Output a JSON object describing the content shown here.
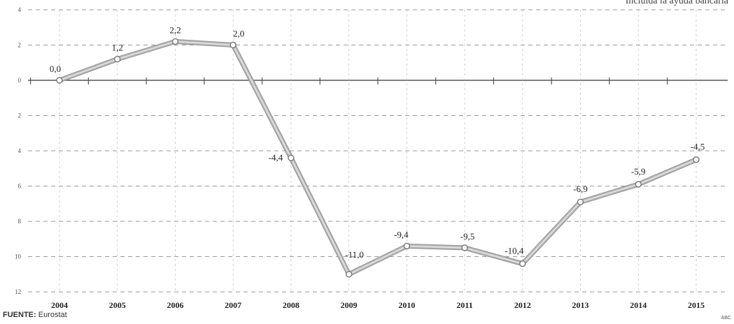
{
  "subtitle": "Incluida la ayuda bancaria",
  "source_label": "FUENTE:",
  "source_value": "Eurostat",
  "credit": "ABC",
  "colors": {
    "line": "#b9b9b9",
    "highlight": "#d6d6d6",
    "grid": "#9a9a9a",
    "text": "#222222"
  },
  "chart_data": {
    "type": "line",
    "title": "",
    "xlabel": "",
    "ylabel": "",
    "categories": [
      "2004",
      "2005",
      "2006",
      "2007",
      "2008",
      "2009",
      "2010",
      "2011",
      "2012",
      "2013",
      "2014",
      "2015"
    ],
    "series": [
      {
        "values": [
          0.0,
          1.2,
          2.2,
          2.0,
          -4.4,
          -11.0,
          -9.4,
          -9.5,
          -10.4,
          -6.9,
          -5.9,
          -4.5
        ]
      }
    ],
    "point_labels": [
      "0,0",
      "1,2",
      "2,2",
      "2,0",
      "-4,4",
      "-11,0",
      "-9,4",
      "-9,5",
      "-10,4",
      "-6,9",
      "-5,9",
      "-4,5"
    ],
    "y_ticks": [
      4,
      2,
      0,
      -2,
      -4,
      -6,
      -8,
      -10,
      -12
    ],
    "ylim": [
      -12,
      4
    ],
    "grid": true,
    "legend": "none"
  }
}
